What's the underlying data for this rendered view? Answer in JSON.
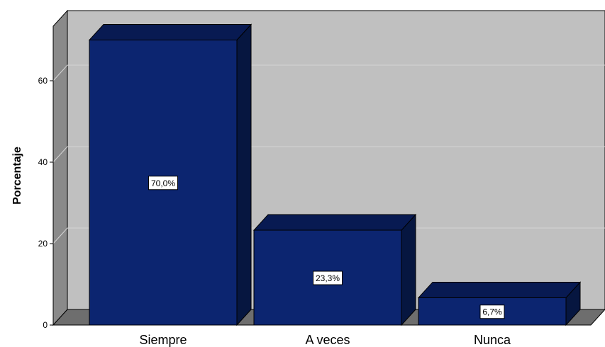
{
  "chart_data": {
    "type": "bar",
    "categories": [
      "Siempre",
      "A veces",
      "Nunca"
    ],
    "values": [
      70.0,
      23.3,
      6.7
    ],
    "data_labels": [
      "70,0%",
      "23,3%",
      "6,7%"
    ],
    "ylabel": "Porcentaje",
    "xlabel": "",
    "yticks": [
      0,
      20,
      40,
      60
    ],
    "ylim": [
      0,
      74
    ],
    "grid": true,
    "style": "3d",
    "colors": {
      "bar_front": "#0c2570",
      "bar_top": "#081a52",
      "bar_side": "#061640",
      "plot_back": "#c0c0c0",
      "plot_left_wall": "#8a8a8a",
      "plot_floor": "#6e6e6e",
      "grid": "#d4d4d4"
    }
  }
}
